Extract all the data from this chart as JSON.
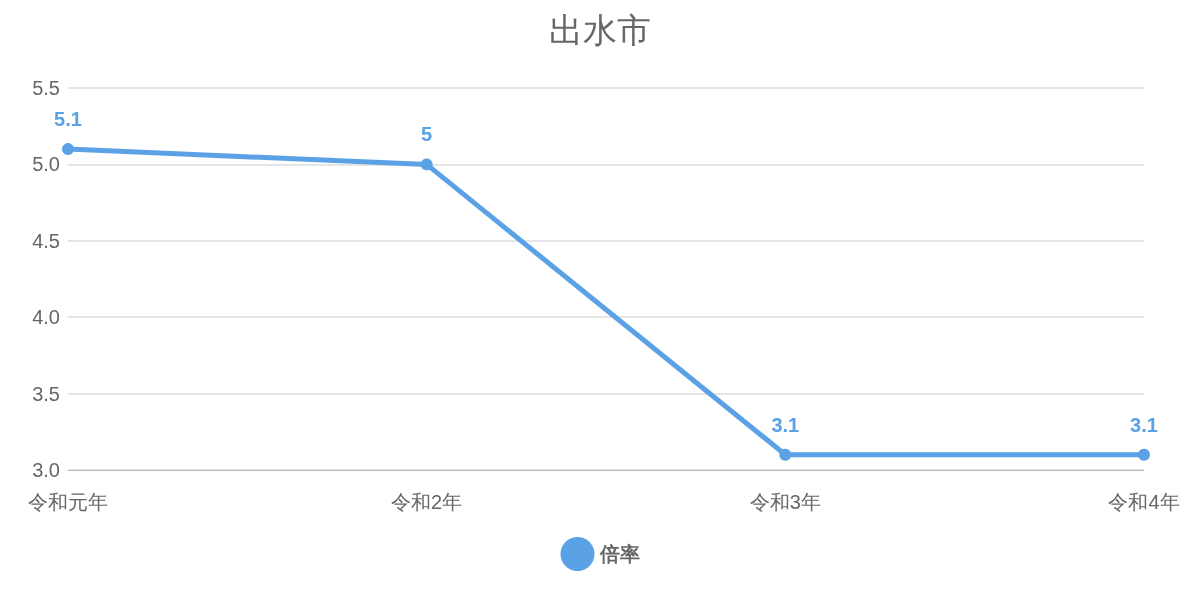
{
  "chart_data": {
    "type": "line",
    "title": "出水市",
    "categories": [
      "令和元年",
      "令和2年",
      "令和3年",
      "令和4年"
    ],
    "series": [
      {
        "name": "倍率",
        "color": "#5aa2e5",
        "values": [
          5.1,
          5,
          3.1,
          3.1
        ]
      }
    ],
    "ylim": [
      3,
      5.5
    ],
    "yticks": [
      {
        "value": 3,
        "label": "3.0"
      },
      3.5,
      {
        "value": 4,
        "label": "4.0"
      },
      4.5,
      {
        "value": 5,
        "label": "5.0"
      },
      5.5
    ],
    "grid": "y",
    "legend": "bottom",
    "marker": "circle",
    "line_style": "solid",
    "data_labels": true
  }
}
